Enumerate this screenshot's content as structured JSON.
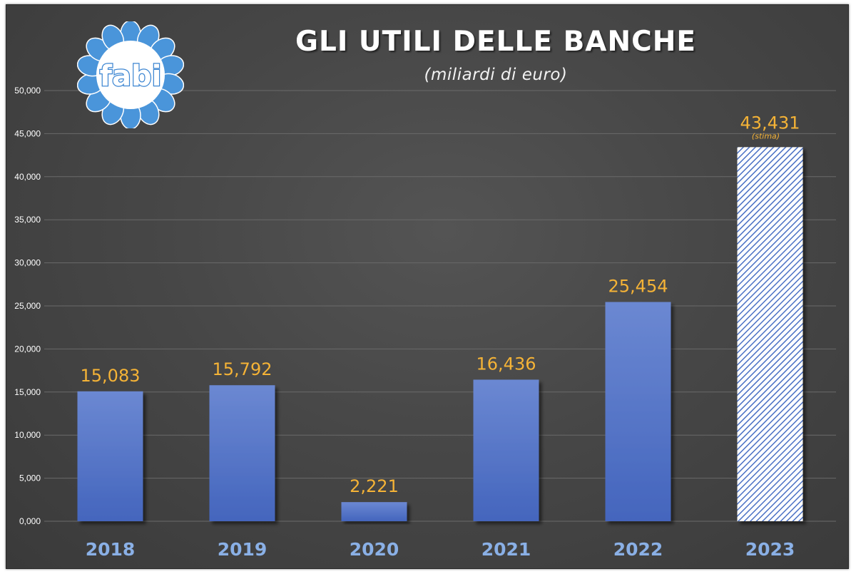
{
  "header": {
    "title": "GLI UTILI DELLE BANCHE",
    "subtitle": "(miliardi di euro)",
    "logo_text": "fabi"
  },
  "colors": {
    "bar": "#4a6fc4",
    "label": "#f5b336",
    "xtick": "#8ab0e6",
    "petal": "#4a95da"
  },
  "chart_data": {
    "type": "bar",
    "title": "GLI UTILI DELLE BANCHE",
    "subtitle": "(miliardi di euro)",
    "categories": [
      "2018",
      "2019",
      "2020",
      "2021",
      "2022",
      "2023"
    ],
    "values": [
      15.083,
      15.792,
      2.221,
      16.436,
      25.454,
      43.431
    ],
    "value_labels": [
      "15,083",
      "15,792",
      "2,221",
      "16,436",
      "25,454",
      "43,431"
    ],
    "notes": [
      "",
      "",
      "",
      "",
      "",
      "(stima)"
    ],
    "hatched": [
      false,
      false,
      false,
      false,
      false,
      true
    ],
    "ylim": [
      0,
      50
    ],
    "yticks": [
      0,
      5,
      10,
      15,
      20,
      25,
      30,
      35,
      40,
      45,
      50
    ],
    "ytick_labels": [
      "0,000",
      "5,000",
      "10,000",
      "15,000",
      "20,000",
      "25,000",
      "30,000",
      "35,000",
      "40,000",
      "45,000",
      "50,000"
    ],
    "grid": true,
    "legend": "none"
  }
}
